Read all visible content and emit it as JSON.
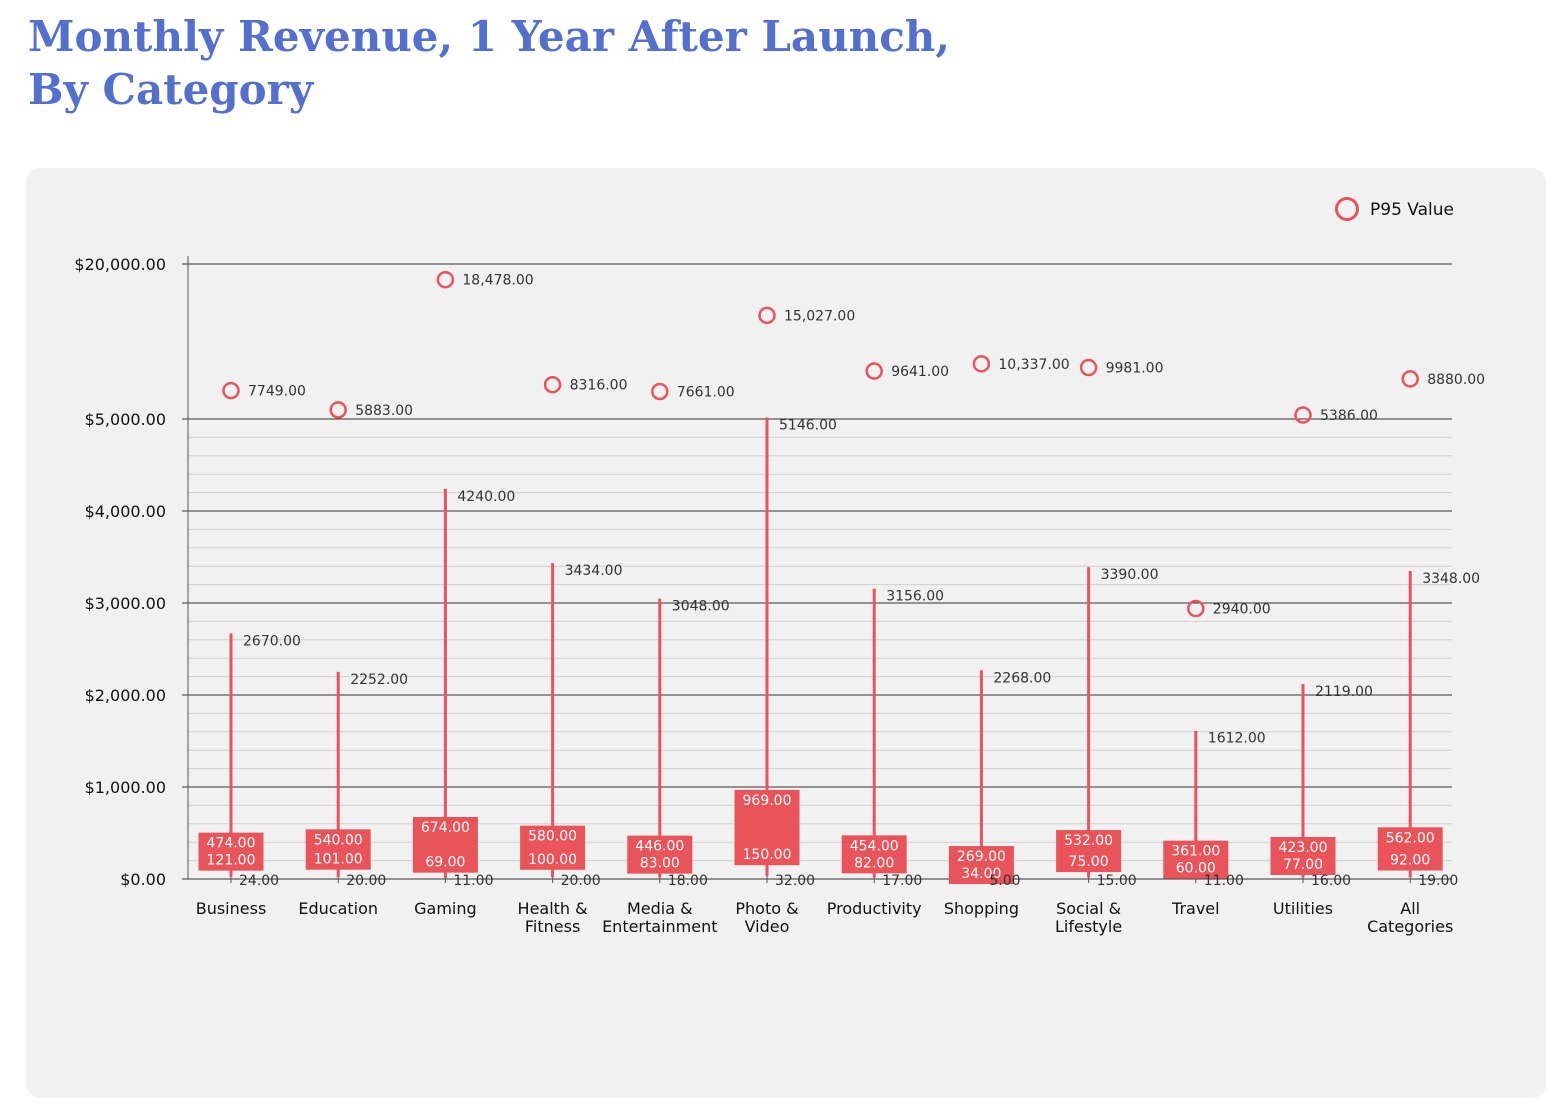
{
  "title": {
    "line1": "Monthly Revenue, 1 Year After Launch,",
    "line2": "By Category"
  },
  "colors": {
    "title": "#5470cf",
    "accent": "#e8545a",
    "panel": "#f1f1f2",
    "grid_major": "#333333",
    "grid_minor": "#cfcfcf"
  },
  "chart_data": {
    "type": "box",
    "legend": {
      "label": "P95 Value",
      "position": "top-right"
    },
    "y_ticks": [
      {
        "value": 0,
        "label": "$0.00"
      },
      {
        "value": 1000,
        "label": "$1,000.00"
      },
      {
        "value": 2000,
        "label": "$2,000.00"
      },
      {
        "value": 3000,
        "label": "$3,000.00"
      },
      {
        "value": 4000,
        "label": "$4,000.00"
      },
      {
        "value": 5000,
        "label": "$5,000.00"
      },
      {
        "value": 20000,
        "label": "$20,000.00"
      }
    ],
    "ylim": [
      0,
      20000
    ],
    "y_scale": "linear 0–5,000, compressed 5,000–20,000",
    "grid": true,
    "categories": [
      {
        "label": [
          "Business"
        ],
        "min": 24,
        "min_label": "24.00",
        "q1": 121,
        "q1_label": "121.00",
        "q3": 474,
        "q3_label": "474.00",
        "p90": 2670,
        "p90_label": "2670.00",
        "p95": 7749,
        "p95_label": "7749.00"
      },
      {
        "label": [
          "Education"
        ],
        "min": 20,
        "min_label": "20.00",
        "q1": 101,
        "q1_label": "101.00",
        "q3": 540,
        "q3_label": "540.00",
        "p90": 2252,
        "p90_label": "2252.00",
        "p95": 5883,
        "p95_label": "5883.00"
      },
      {
        "label": [
          "Gaming"
        ],
        "min": 11,
        "min_label": "11.00",
        "q1": 69,
        "q1_label": "69.00",
        "q3": 674,
        "q3_label": "674.00",
        "p90": 4240,
        "p90_label": "4240.00",
        "p95": 18478,
        "p95_label": "18,478.00"
      },
      {
        "label": [
          "Health &",
          "Fitness"
        ],
        "min": 20,
        "min_label": "20.00",
        "q1": 100,
        "q1_label": "100.00",
        "q3": 580,
        "q3_label": "580.00",
        "p90": 3434,
        "p90_label": "3434.00",
        "p95": 8316,
        "p95_label": "8316.00"
      },
      {
        "label": [
          "Media &",
          "Entertainment"
        ],
        "min": 18,
        "min_label": "18.00",
        "q1": 83,
        "q1_label": "83.00",
        "q3": 446,
        "q3_label": "446.00",
        "p90": 3048,
        "p90_label": "3048.00",
        "p95": 7661,
        "p95_label": "7661.00"
      },
      {
        "label": [
          "Photo &",
          "Video"
        ],
        "min": 32,
        "min_label": "32.00",
        "q1": 150,
        "q1_label": "150.00",
        "q3": 969,
        "q3_label": "969.00",
        "p90": 5146,
        "p90_label": "5146.00",
        "p95": 15027,
        "p95_label": "15,027.00"
      },
      {
        "label": [
          "Productivity"
        ],
        "min": 17,
        "min_label": "17.00",
        "q1": 82,
        "q1_label": "82.00",
        "q3": 454,
        "q3_label": "454.00",
        "p90": 3156,
        "p90_label": "3156.00",
        "p95": 9641,
        "p95_label": "9641.00"
      },
      {
        "label": [
          "Shopping"
        ],
        "min": 5,
        "min_label": "5.00",
        "q1": 34,
        "q1_label": "34.00",
        "q3": 269,
        "q3_label": "269.00",
        "p90": 2268,
        "p90_label": "2268.00",
        "p95": 10337,
        "p95_label": "10,337.00"
      },
      {
        "label": [
          "Social &",
          "Lifestyle"
        ],
        "min": 15,
        "min_label": "15.00",
        "q1": 75,
        "q1_label": "75.00",
        "q3": 532,
        "q3_label": "532.00",
        "p90": 3390,
        "p90_label": "3390.00",
        "p95": 9981,
        "p95_label": "9981.00"
      },
      {
        "label": [
          "Travel"
        ],
        "min": 11,
        "min_label": "11.00",
        "q1": 60,
        "q1_label": "60.00",
        "q3": 361,
        "q3_label": "361.00",
        "p90": 1612,
        "p90_label": "1612.00",
        "p95": 2940,
        "p95_label": "2940.00"
      },
      {
        "label": [
          "Utilities"
        ],
        "min": 16,
        "min_label": "16.00",
        "q1": 77,
        "q1_label": "77.00",
        "q3": 423,
        "q3_label": "423.00",
        "p90": 2119,
        "p90_label": "2119.00",
        "p95": 5386,
        "p95_label": "5386.00"
      },
      {
        "label": [
          "All",
          "Categories"
        ],
        "min": 19,
        "min_label": "19.00",
        "q1": 92,
        "q1_label": "92.00",
        "q3": 562,
        "q3_label": "562.00",
        "p90": 3348,
        "p90_label": "3348.00",
        "p95": 8880,
        "p95_label": "8880.00"
      }
    ]
  }
}
